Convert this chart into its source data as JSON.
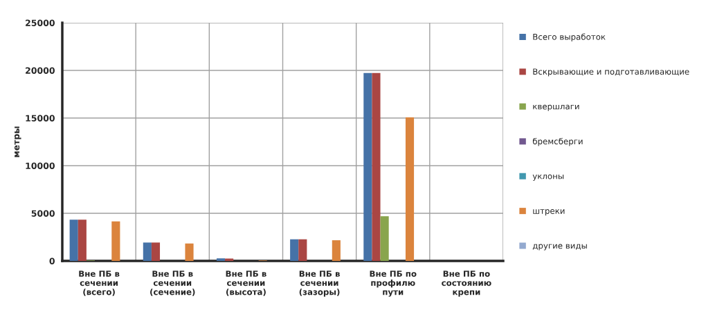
{
  "chart_data": {
    "type": "bar",
    "ylabel": "метры",
    "categories": [
      "Вне ПБ в сечении (всего)",
      "Вне ПБ в сечении (сечение)",
      "Вне ПБ в сечении (высота)",
      "Вне ПБ в сечении (зазоры)",
      "Вне ПБ по профилю пути",
      "Вне ПБ по состоянию крепи"
    ],
    "series": [
      {
        "name": "Всего выработок",
        "color": "#4572a7",
        "values": [
          4330,
          1930,
          270,
          2270,
          19730,
          null
        ]
      },
      {
        "name": "Вскрывающие и подготавливающие",
        "color": "#aa4643",
        "values": [
          4330,
          1930,
          250,
          2270,
          19730,
          null
        ]
      },
      {
        "name": "квершлаги",
        "color": "#89a54e",
        "values": [
          50,
          null,
          null,
          null,
          4690,
          null
        ]
      },
      {
        "name": "бремсберги",
        "color": "#71588f",
        "values": [
          null,
          null,
          null,
          null,
          null,
          null
        ]
      },
      {
        "name": "уклоны",
        "color": "#4198af",
        "values": [
          null,
          null,
          null,
          null,
          null,
          null
        ]
      },
      {
        "name": "штреки",
        "color": "#db843d",
        "values": [
          4150,
          1830,
          50,
          2170,
          15070,
          null
        ]
      },
      {
        "name": "другие виды",
        "color": "#93a9cf",
        "values": [
          null,
          null,
          null,
          null,
          null,
          null
        ]
      }
    ],
    "ylim": [
      0,
      25000
    ],
    "yticks": [
      0,
      5000,
      10000,
      15000,
      20000,
      25000
    ],
    "grid": true,
    "legend": "right"
  }
}
